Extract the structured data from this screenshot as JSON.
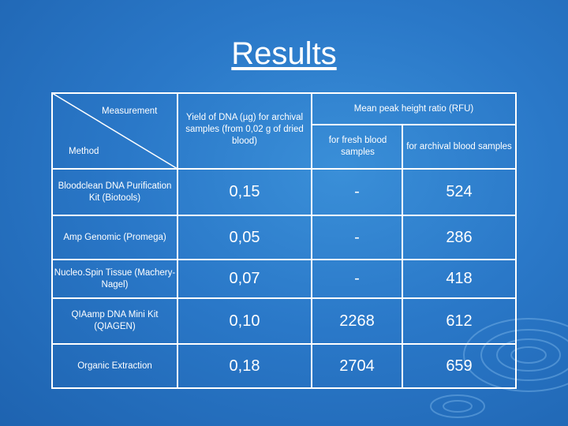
{
  "title": "Results",
  "header": {
    "measurement": "Measurement",
    "method": "Method",
    "yield": "Yield of DNA (µg) for archival samples (from 0,02 g of dried blood)",
    "mean_peak": "Mean peak height ratio (RFU)",
    "fresh": "for fresh blood samples",
    "archival": "for archival blood samples"
  },
  "rows": [
    {
      "method": "Bloodclean DNA Purification Kit (Biotools)",
      "yield": "0,15",
      "fresh": "-",
      "archival": "524"
    },
    {
      "method": "Amp Genomic (Promega)",
      "yield": "0,05",
      "fresh": "-",
      "archival": "286"
    },
    {
      "method": "Nucleo.Spin Tissue (Machery-Nagel)",
      "yield": "0,07",
      "fresh": "-",
      "archival": "418"
    },
    {
      "method": "QIAamp DNA Mini Kit (QIAGEN)",
      "yield": "0,10",
      "fresh": "2268",
      "archival": "612"
    },
    {
      "method": "Organic Extraction",
      "yield": "0,18",
      "fresh": "2704",
      "archival": "659"
    }
  ]
}
